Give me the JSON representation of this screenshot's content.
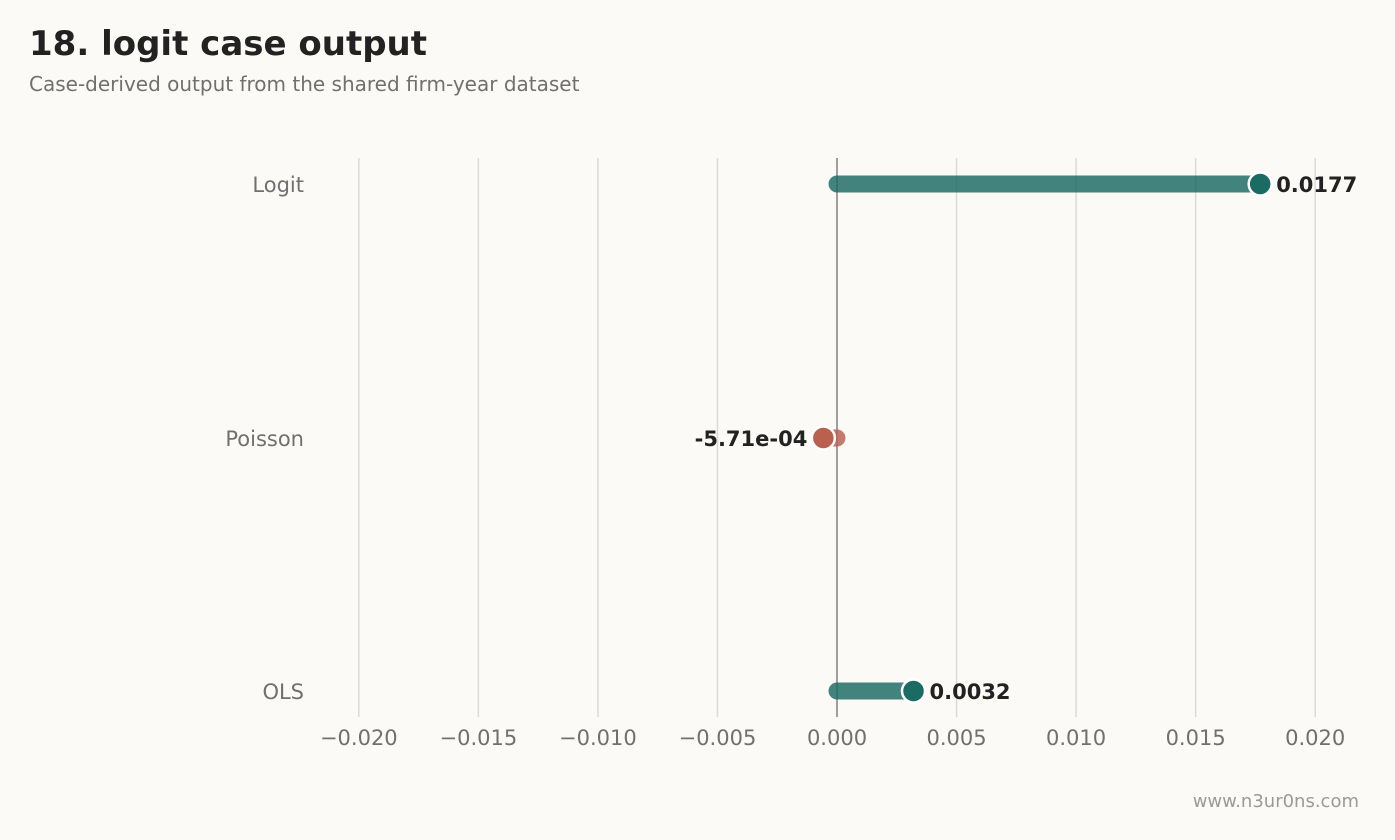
{
  "title": "18. logit case output",
  "subtitle": "Case-derived output from the shared firm-year dataset",
  "footer": "www.n3ur0ns.com",
  "colors": {
    "positive": "#1a6b63",
    "negative": "#b9604f",
    "grid": "#dcdad4",
    "zero_line": "#9e9e9e",
    "background": "#fbfaf7"
  },
  "chart_data": {
    "type": "bar",
    "orientation": "horizontal",
    "style": "lollipop",
    "categories": [
      "Logit",
      "Poisson",
      "OLS"
    ],
    "values": [
      0.0177,
      -0.000571,
      0.0032
    ],
    "value_labels": [
      "0.0177",
      "-5.71e-04",
      "0.0032"
    ],
    "xlim": [
      -0.022,
      0.022
    ],
    "xticks": [
      -0.02,
      -0.015,
      -0.01,
      -0.005,
      0.0,
      0.005,
      0.01,
      0.015,
      0.02
    ],
    "xtick_labels": [
      "−0.020",
      "−0.015",
      "−0.010",
      "−0.005",
      "0.000",
      "0.005",
      "0.010",
      "0.015",
      "0.020"
    ],
    "xlabel": "",
    "ylabel": "",
    "grid": "vertical"
  }
}
